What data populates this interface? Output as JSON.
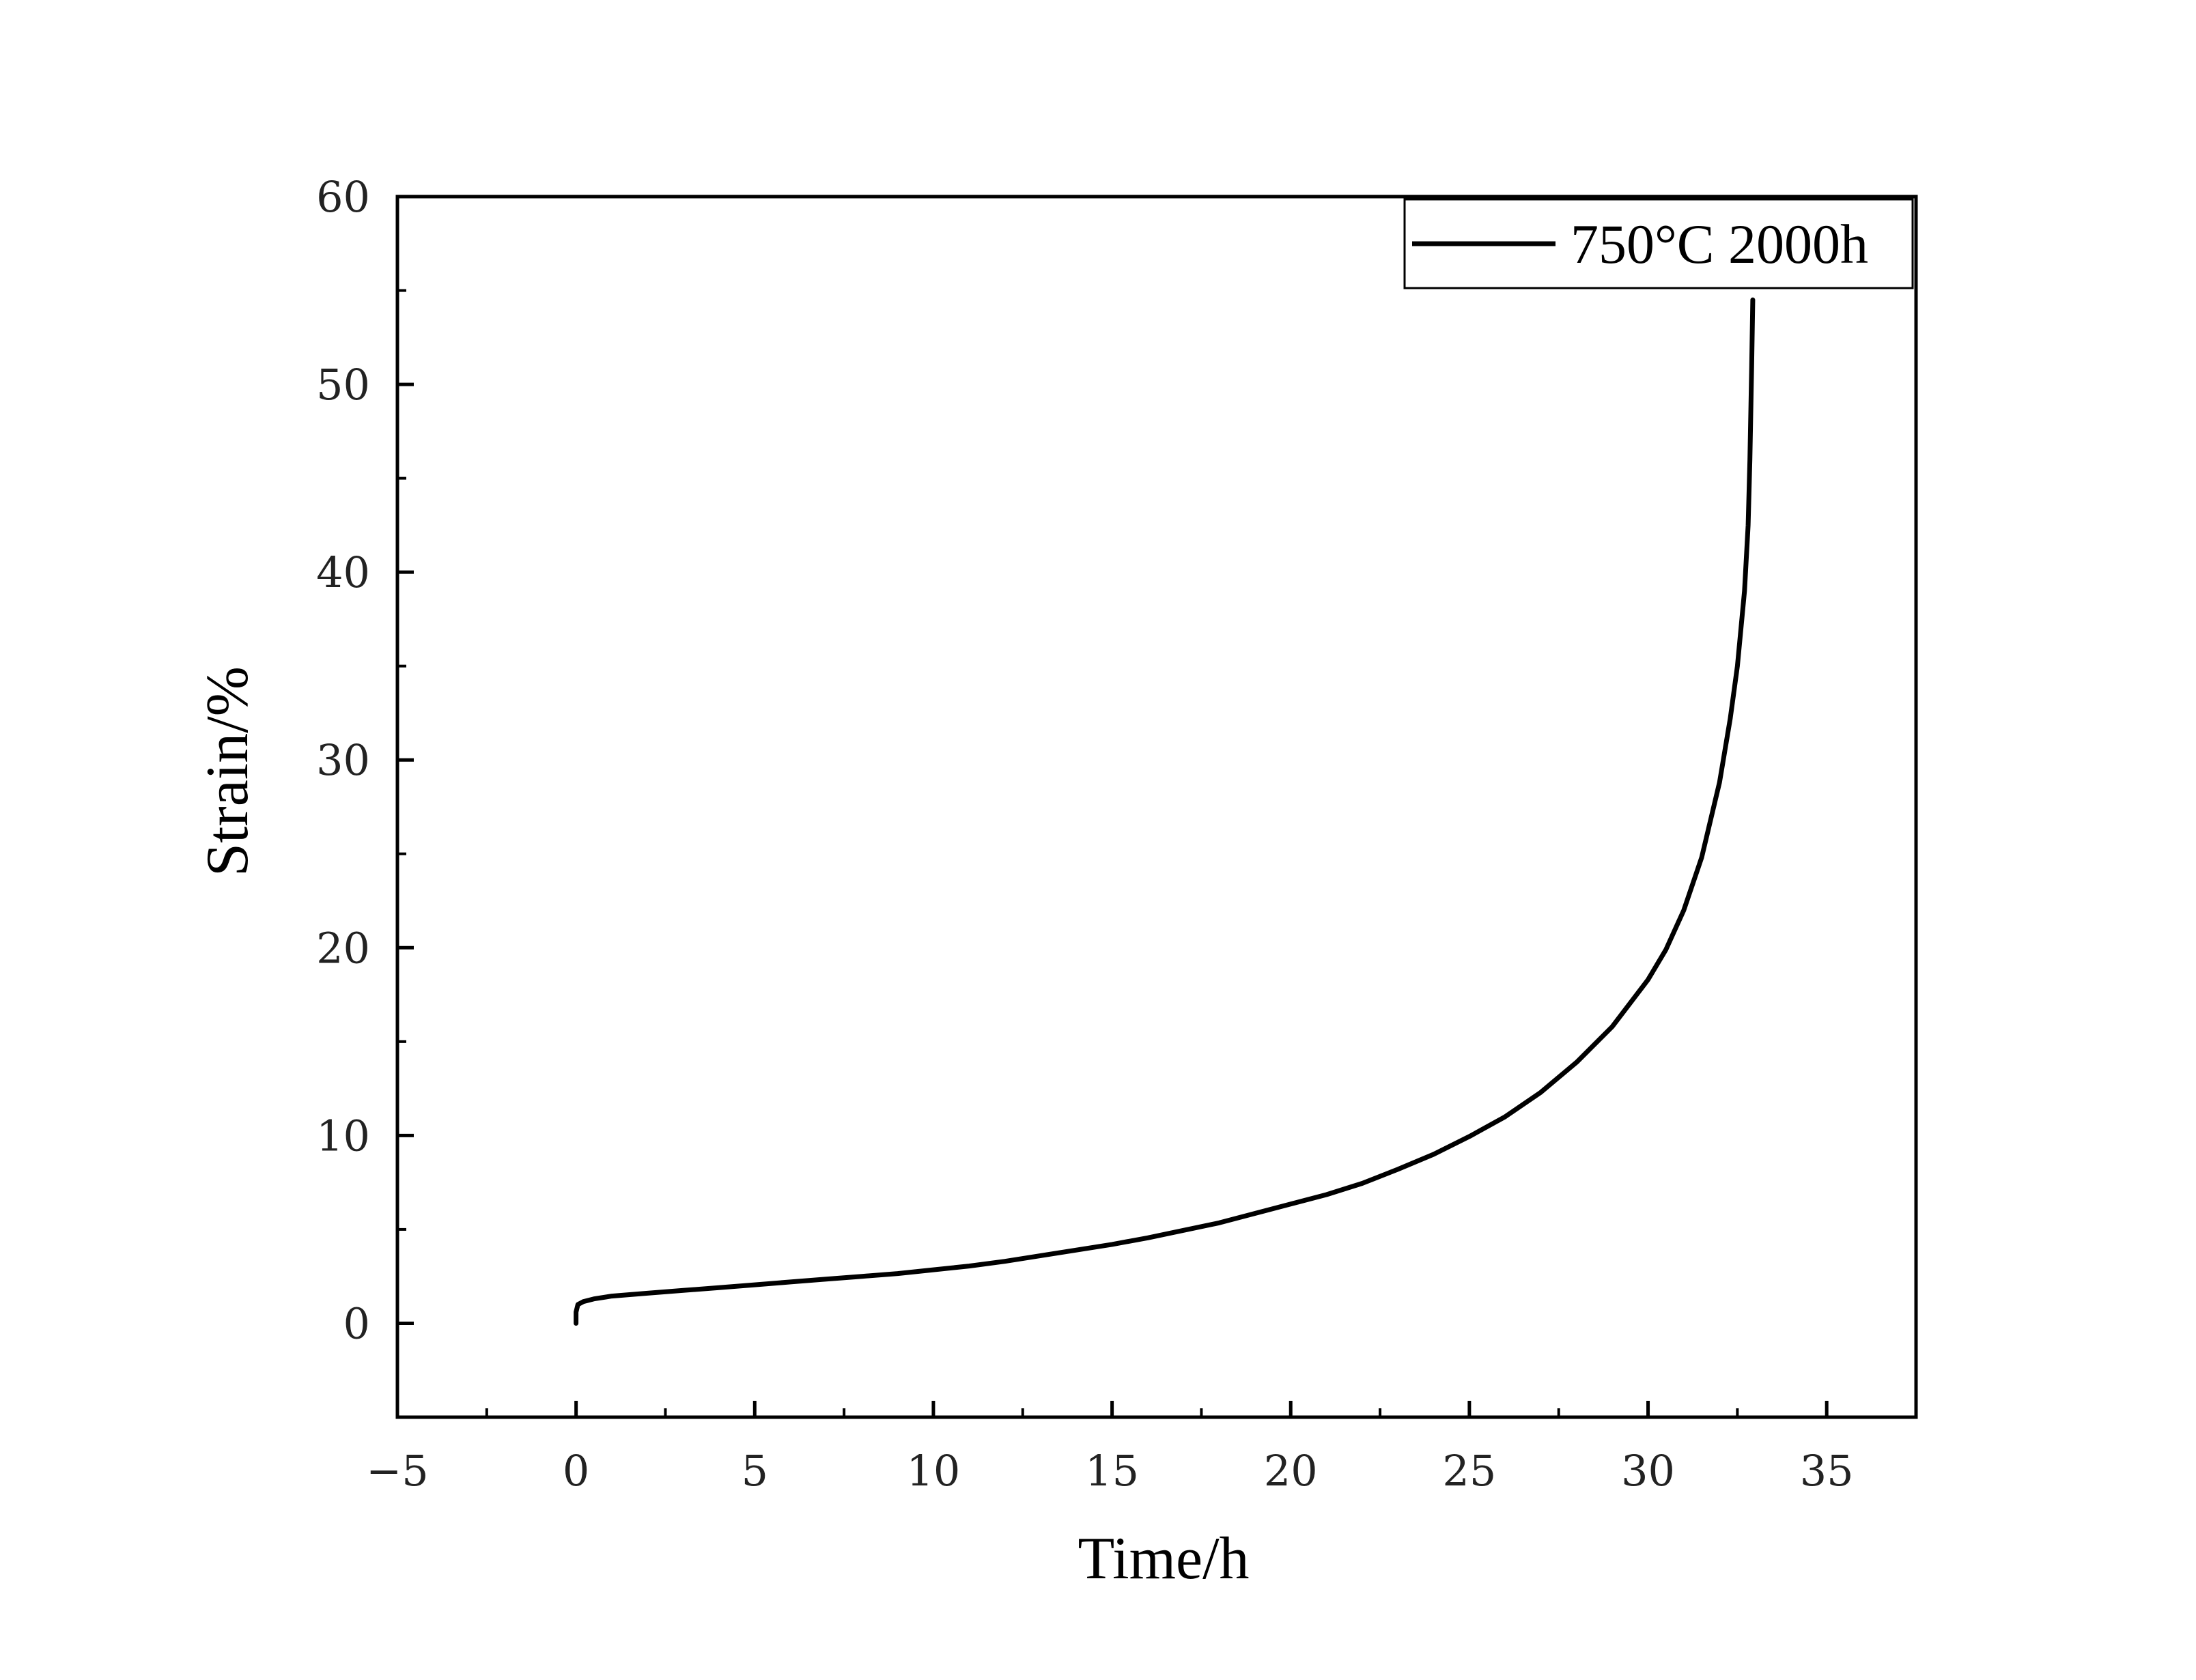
{
  "chart_data": {
    "type": "line",
    "xlabel": "Time/h",
    "ylabel": "Strain/%",
    "xlim": [
      -5,
      37.5
    ],
    "ylim": [
      -5,
      60
    ],
    "xticks": [
      -5,
      0,
      5,
      10,
      15,
      20,
      25,
      30,
      35
    ],
    "yticks": [
      0,
      10,
      20,
      30,
      40,
      50,
      60
    ],
    "xtick_labels": [
      "−5",
      "0",
      "5",
      "10",
      "15",
      "20",
      "25",
      "30",
      "35"
    ],
    "ytick_labels": [
      "0",
      "10",
      "20",
      "30",
      "40",
      "50",
      "60"
    ],
    "grid": false,
    "legend_position": "top-right",
    "series": [
      {
        "name": "750°C 2000h",
        "color": "#000000",
        "x": [
          0.0,
          0.0,
          0.05,
          0.2,
          0.5,
          1.0,
          2.0,
          3.0,
          4.0,
          5.0,
          6.0,
          7.0,
          8.0,
          9.0,
          10.0,
          11.0,
          12.0,
          13.0,
          14.0,
          15.0,
          16.0,
          17.0,
          18.0,
          19.0,
          20.0,
          21.0,
          22.0,
          23.0,
          24.0,
          25.0,
          26.0,
          27.0,
          28.0,
          29.0,
          30.0,
          30.5,
          31.0,
          31.5,
          32.0,
          32.3,
          32.5,
          32.7,
          32.8,
          32.85,
          32.9,
          32.93
        ],
        "y": [
          0.0,
          0.6,
          1.0,
          1.15,
          1.3,
          1.45,
          1.6,
          1.75,
          1.9,
          2.05,
          2.2,
          2.35,
          2.5,
          2.65,
          2.85,
          3.05,
          3.3,
          3.6,
          3.9,
          4.2,
          4.55,
          4.95,
          5.35,
          5.85,
          6.35,
          6.85,
          7.45,
          8.2,
          9.0,
          9.95,
          11.0,
          12.3,
          13.9,
          15.8,
          18.3,
          19.9,
          22.0,
          24.8,
          28.8,
          32.2,
          35.0,
          39.0,
          42.5,
          46.0,
          51.0,
          54.5
        ]
      }
    ]
  }
}
